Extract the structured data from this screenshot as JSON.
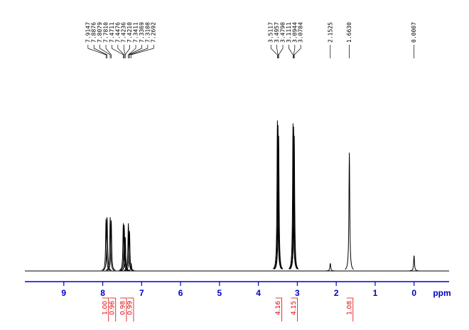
{
  "chart_data": {
    "type": "nmr",
    "x_label": "ppm",
    "xlim": [
      10.0,
      -0.9
    ],
    "xticks": [
      9,
      8,
      7,
      6,
      5,
      4,
      3,
      2,
      1,
      0
    ],
    "ylim": [
      0,
      100
    ],
    "peaks": {
      "x": [
        7.9147,
        7.8876,
        7.8079,
        7.781,
        7.4711,
        7.4476,
        7.4236,
        7.421,
        7.3411,
        7.3369,
        7.3108,
        7.2692,
        3.5117,
        3.4957,
        3.479,
        3.1111,
        3.0944,
        3.0784,
        2.1525,
        1.663,
        0.0007
      ],
      "labels": [
        "7.9147",
        "7.8876",
        "7.8079",
        "7.7810",
        "7.4711",
        "7.4476",
        "7.4236",
        "7.4210",
        "7.3411",
        "7.3369",
        "7.3108",
        "7.2692",
        "3.5117",
        "3.4957",
        "3.4790",
        "3.1111",
        "3.0944",
        "3.0784",
        "2.1525",
        "1.6630",
        "0.0007"
      ],
      "values": [
        34,
        35,
        35,
        33,
        31,
        30,
        22,
        22,
        31,
        28,
        26,
        5,
        98,
        95,
        88,
        96,
        94,
        88,
        5,
        77,
        10
      ]
    },
    "integrals": {
      "x": [
        7.9,
        7.8,
        7.45,
        7.33,
        3.49,
        3.09,
        1.66
      ],
      "values": [
        1.0,
        0.96,
        0.98,
        0.99,
        4.16,
        4.15,
        1.08
      ],
      "value_labels": [
        "1.00",
        "0.96",
        "0.98",
        "0.99",
        "4.16",
        "4.15",
        "1.08"
      ],
      "color": "#e00000"
    },
    "axis_color": "#0000c8",
    "line_color": "#000000"
  }
}
